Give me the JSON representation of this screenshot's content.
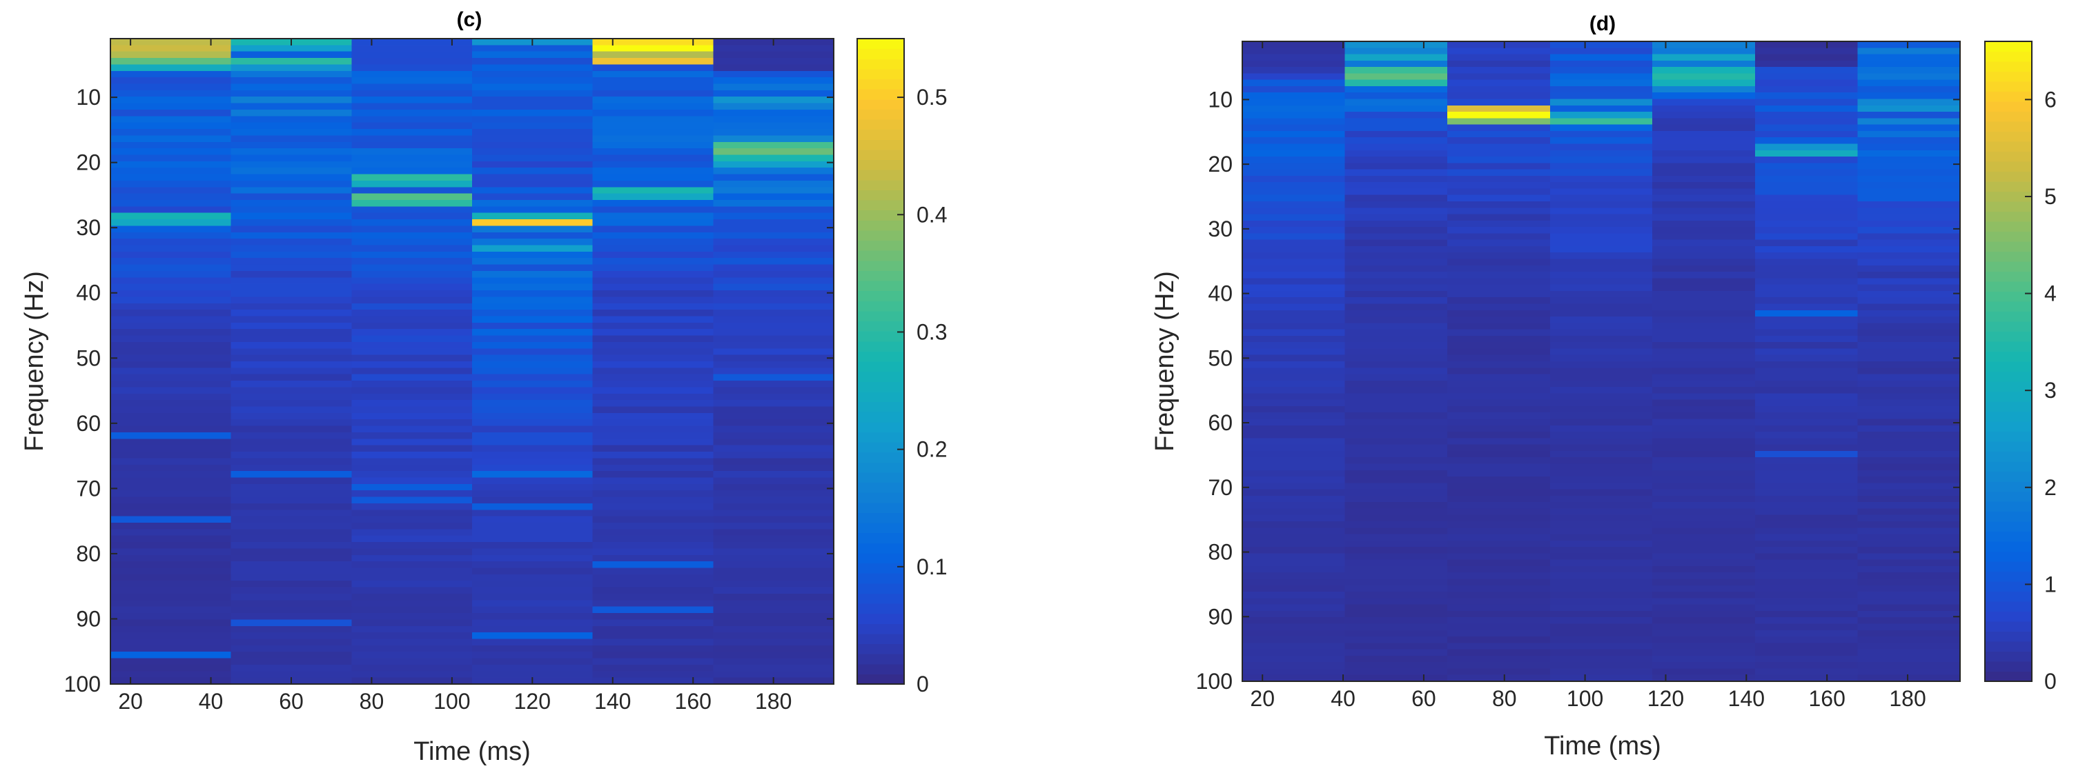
{
  "chart_data": [
    {
      "type": "heatmap",
      "title": "(c)",
      "xlabel": "Time (ms)",
      "ylabel": "Frequency (Hz)",
      "x_ticks": [
        20,
        40,
        60,
        80,
        100,
        120,
        140,
        160,
        180
      ],
      "y_ticks": [
        10,
        20,
        30,
        40,
        50,
        60,
        70,
        80,
        90,
        100
      ],
      "x_range": [
        15,
        195
      ],
      "y_range": [
        1,
        100
      ],
      "y_reversed": true,
      "time_bins": [
        30,
        60,
        90,
        120,
        150,
        180
      ],
      "colorbar": {
        "ticks": [
          0,
          0.1,
          0.2,
          0.3,
          0.4,
          0.5
        ],
        "range": [
          0,
          0.55
        ]
      },
      "base_profiles": [
        [
          [
            1,
            0.08
          ],
          [
            20,
            0.1
          ],
          [
            35,
            0.07
          ],
          [
            45,
            0.035
          ],
          [
            60,
            0.03
          ],
          [
            80,
            0.02
          ],
          [
            100,
            0.015
          ]
        ],
        [
          [
            1,
            0.12
          ],
          [
            15,
            0.12
          ],
          [
            25,
            0.1
          ],
          [
            40,
            0.05
          ],
          [
            60,
            0.035
          ],
          [
            80,
            0.025
          ],
          [
            100,
            0.02
          ]
        ],
        [
          [
            1,
            0.09
          ],
          [
            20,
            0.1
          ],
          [
            30,
            0.1
          ],
          [
            40,
            0.06
          ],
          [
            60,
            0.045
          ],
          [
            80,
            0.035
          ],
          [
            100,
            0.02
          ]
        ],
        [
          [
            1,
            0.1
          ],
          [
            20,
            0.07
          ],
          [
            30,
            0.12
          ],
          [
            45,
            0.09
          ],
          [
            60,
            0.06
          ],
          [
            80,
            0.035
          ],
          [
            100,
            0.025
          ]
        ],
        [
          [
            1,
            0.1
          ],
          [
            15,
            0.1
          ],
          [
            25,
            0.11
          ],
          [
            40,
            0.05
          ],
          [
            60,
            0.04
          ],
          [
            80,
            0.03
          ],
          [
            100,
            0.02
          ]
        ],
        [
          [
            1,
            0.02
          ],
          [
            5,
            0.02
          ],
          [
            6,
            0.12
          ],
          [
            20,
            0.14
          ],
          [
            30,
            0.08
          ],
          [
            45,
            0.05
          ],
          [
            60,
            0.03
          ],
          [
            80,
            0.025
          ],
          [
            100,
            0.02
          ]
        ]
      ],
      "highlights": [
        [
          1,
          1,
          0.43
        ],
        [
          1,
          2,
          0.44
        ],
        [
          1,
          3,
          0.42
        ],
        [
          1,
          4,
          0.35
        ],
        [
          1,
          5,
          0.25
        ],
        [
          1,
          28,
          0.27
        ],
        [
          1,
          29,
          0.24
        ],
        [
          1,
          62,
          0.1
        ],
        [
          1,
          75,
          0.09
        ],
        [
          1,
          96,
          0.11
        ],
        [
          2,
          1,
          0.28
        ],
        [
          2,
          2,
          0.22
        ],
        [
          2,
          4,
          0.3
        ],
        [
          2,
          5,
          0.2
        ],
        [
          2,
          10,
          0.16
        ],
        [
          2,
          68,
          0.1
        ],
        [
          2,
          91,
          0.08
        ],
        [
          3,
          22,
          0.3
        ],
        [
          3,
          23,
          0.25
        ],
        [
          3,
          25,
          0.34
        ],
        [
          3,
          26,
          0.3
        ],
        [
          3,
          70,
          0.1
        ],
        [
          3,
          72,
          0.09
        ],
        [
          4,
          1,
          0.2
        ],
        [
          4,
          28,
          0.26
        ],
        [
          4,
          29,
          0.5
        ],
        [
          4,
          33,
          0.22
        ],
        [
          4,
          68,
          0.12
        ],
        [
          4,
          73,
          0.1
        ],
        [
          4,
          93,
          0.11
        ],
        [
          5,
          1,
          0.52
        ],
        [
          5,
          2,
          0.56
        ],
        [
          5,
          3,
          0.42
        ],
        [
          5,
          4,
          0.48
        ],
        [
          5,
          24,
          0.28
        ],
        [
          5,
          25,
          0.24
        ],
        [
          5,
          82,
          0.1
        ],
        [
          5,
          89,
          0.09
        ],
        [
          6,
          10,
          0.2
        ],
        [
          6,
          17,
          0.33
        ],
        [
          6,
          18,
          0.36
        ],
        [
          6,
          19,
          0.28
        ],
        [
          6,
          20,
          0.22
        ],
        [
          6,
          53,
          0.09
        ]
      ]
    },
    {
      "type": "heatmap",
      "title": "(d)",
      "xlabel": "Time (ms)",
      "ylabel": "Frequency (Hz)",
      "x_ticks": [
        20,
        40,
        60,
        80,
        100,
        120,
        140,
        160,
        180
      ],
      "y_ticks": [
        10,
        20,
        30,
        40,
        50,
        60,
        70,
        80,
        90,
        100
      ],
      "x_range": [
        15,
        193
      ],
      "y_range": [
        1,
        100
      ],
      "y_reversed": true,
      "time_bins": [
        27.7,
        53.1,
        78.6,
        104,
        129.4,
        154.9,
        180.3
      ],
      "colorbar": {
        "ticks": [
          0,
          1,
          2,
          3,
          4,
          5,
          6
        ],
        "range": [
          0,
          6.6
        ]
      },
      "base_profiles": [
        [
          [
            1,
            0.3
          ],
          [
            5,
            0.3
          ],
          [
            7,
            0.9
          ],
          [
            12,
            1.2
          ],
          [
            20,
            1.1
          ],
          [
            30,
            0.75
          ],
          [
            40,
            0.5
          ],
          [
            55,
            0.35
          ],
          [
            70,
            0.3
          ],
          [
            100,
            0.2
          ]
        ],
        [
          [
            1,
            2.2
          ],
          [
            8,
            1.6
          ],
          [
            15,
            0.7
          ],
          [
            30,
            0.4
          ],
          [
            40,
            0.35
          ],
          [
            60,
            0.25
          ],
          [
            80,
            0.2
          ],
          [
            100,
            0.18
          ]
        ],
        [
          [
            1,
            0.5
          ],
          [
            8,
            0.55
          ],
          [
            15,
            0.8
          ],
          [
            25,
            0.55
          ],
          [
            35,
            0.3
          ],
          [
            50,
            0.25
          ],
          [
            70,
            0.2
          ],
          [
            100,
            0.18
          ]
        ],
        [
          [
            1,
            1.0
          ],
          [
            8,
            1.2
          ],
          [
            15,
            1.1
          ],
          [
            25,
            0.7
          ],
          [
            35,
            0.5
          ],
          [
            50,
            0.3
          ],
          [
            70,
            0.25
          ],
          [
            100,
            0.2
          ]
        ],
        [
          [
            1,
            2.3
          ],
          [
            8,
            1.6
          ],
          [
            12,
            0.5
          ],
          [
            25,
            0.4
          ],
          [
            40,
            0.3
          ],
          [
            60,
            0.25
          ],
          [
            100,
            0.2
          ]
        ],
        [
          [
            1,
            0.2
          ],
          [
            4,
            0.2
          ],
          [
            5,
            0.9
          ],
          [
            12,
            1.0
          ],
          [
            20,
            0.9
          ],
          [
            30,
            0.6
          ],
          [
            45,
            0.4
          ],
          [
            60,
            0.3
          ],
          [
            100,
            0.2
          ]
        ],
        [
          [
            1,
            1.5
          ],
          [
            8,
            1.5
          ],
          [
            15,
            1.2
          ],
          [
            25,
            0.9
          ],
          [
            35,
            0.5
          ],
          [
            50,
            0.3
          ],
          [
            70,
            0.25
          ],
          [
            100,
            0.2
          ]
        ]
      ],
      "highlights": [
        [
          2,
          5,
          3.8
        ],
        [
          2,
          6,
          4.2
        ],
        [
          2,
          7,
          3.5
        ],
        [
          2,
          3,
          2.8
        ],
        [
          3,
          11,
          5.5
        ],
        [
          3,
          12,
          6.8
        ],
        [
          3,
          13,
          4.5
        ],
        [
          4,
          13,
          3.8
        ],
        [
          4,
          12,
          2.6
        ],
        [
          4,
          10,
          2.2
        ],
        [
          5,
          5,
          3.2
        ],
        [
          5,
          6,
          3.5
        ],
        [
          5,
          7,
          3.1
        ],
        [
          5,
          3,
          2.8
        ],
        [
          6,
          17,
          2.4
        ],
        [
          6,
          18,
          3.0
        ],
        [
          6,
          43,
          1.3
        ],
        [
          6,
          65,
          0.9
        ],
        [
          7,
          10,
          2.1
        ],
        [
          7,
          11,
          2.3
        ],
        [
          7,
          13,
          2.0
        ],
        [
          7,
          15,
          1.6
        ]
      ]
    }
  ]
}
